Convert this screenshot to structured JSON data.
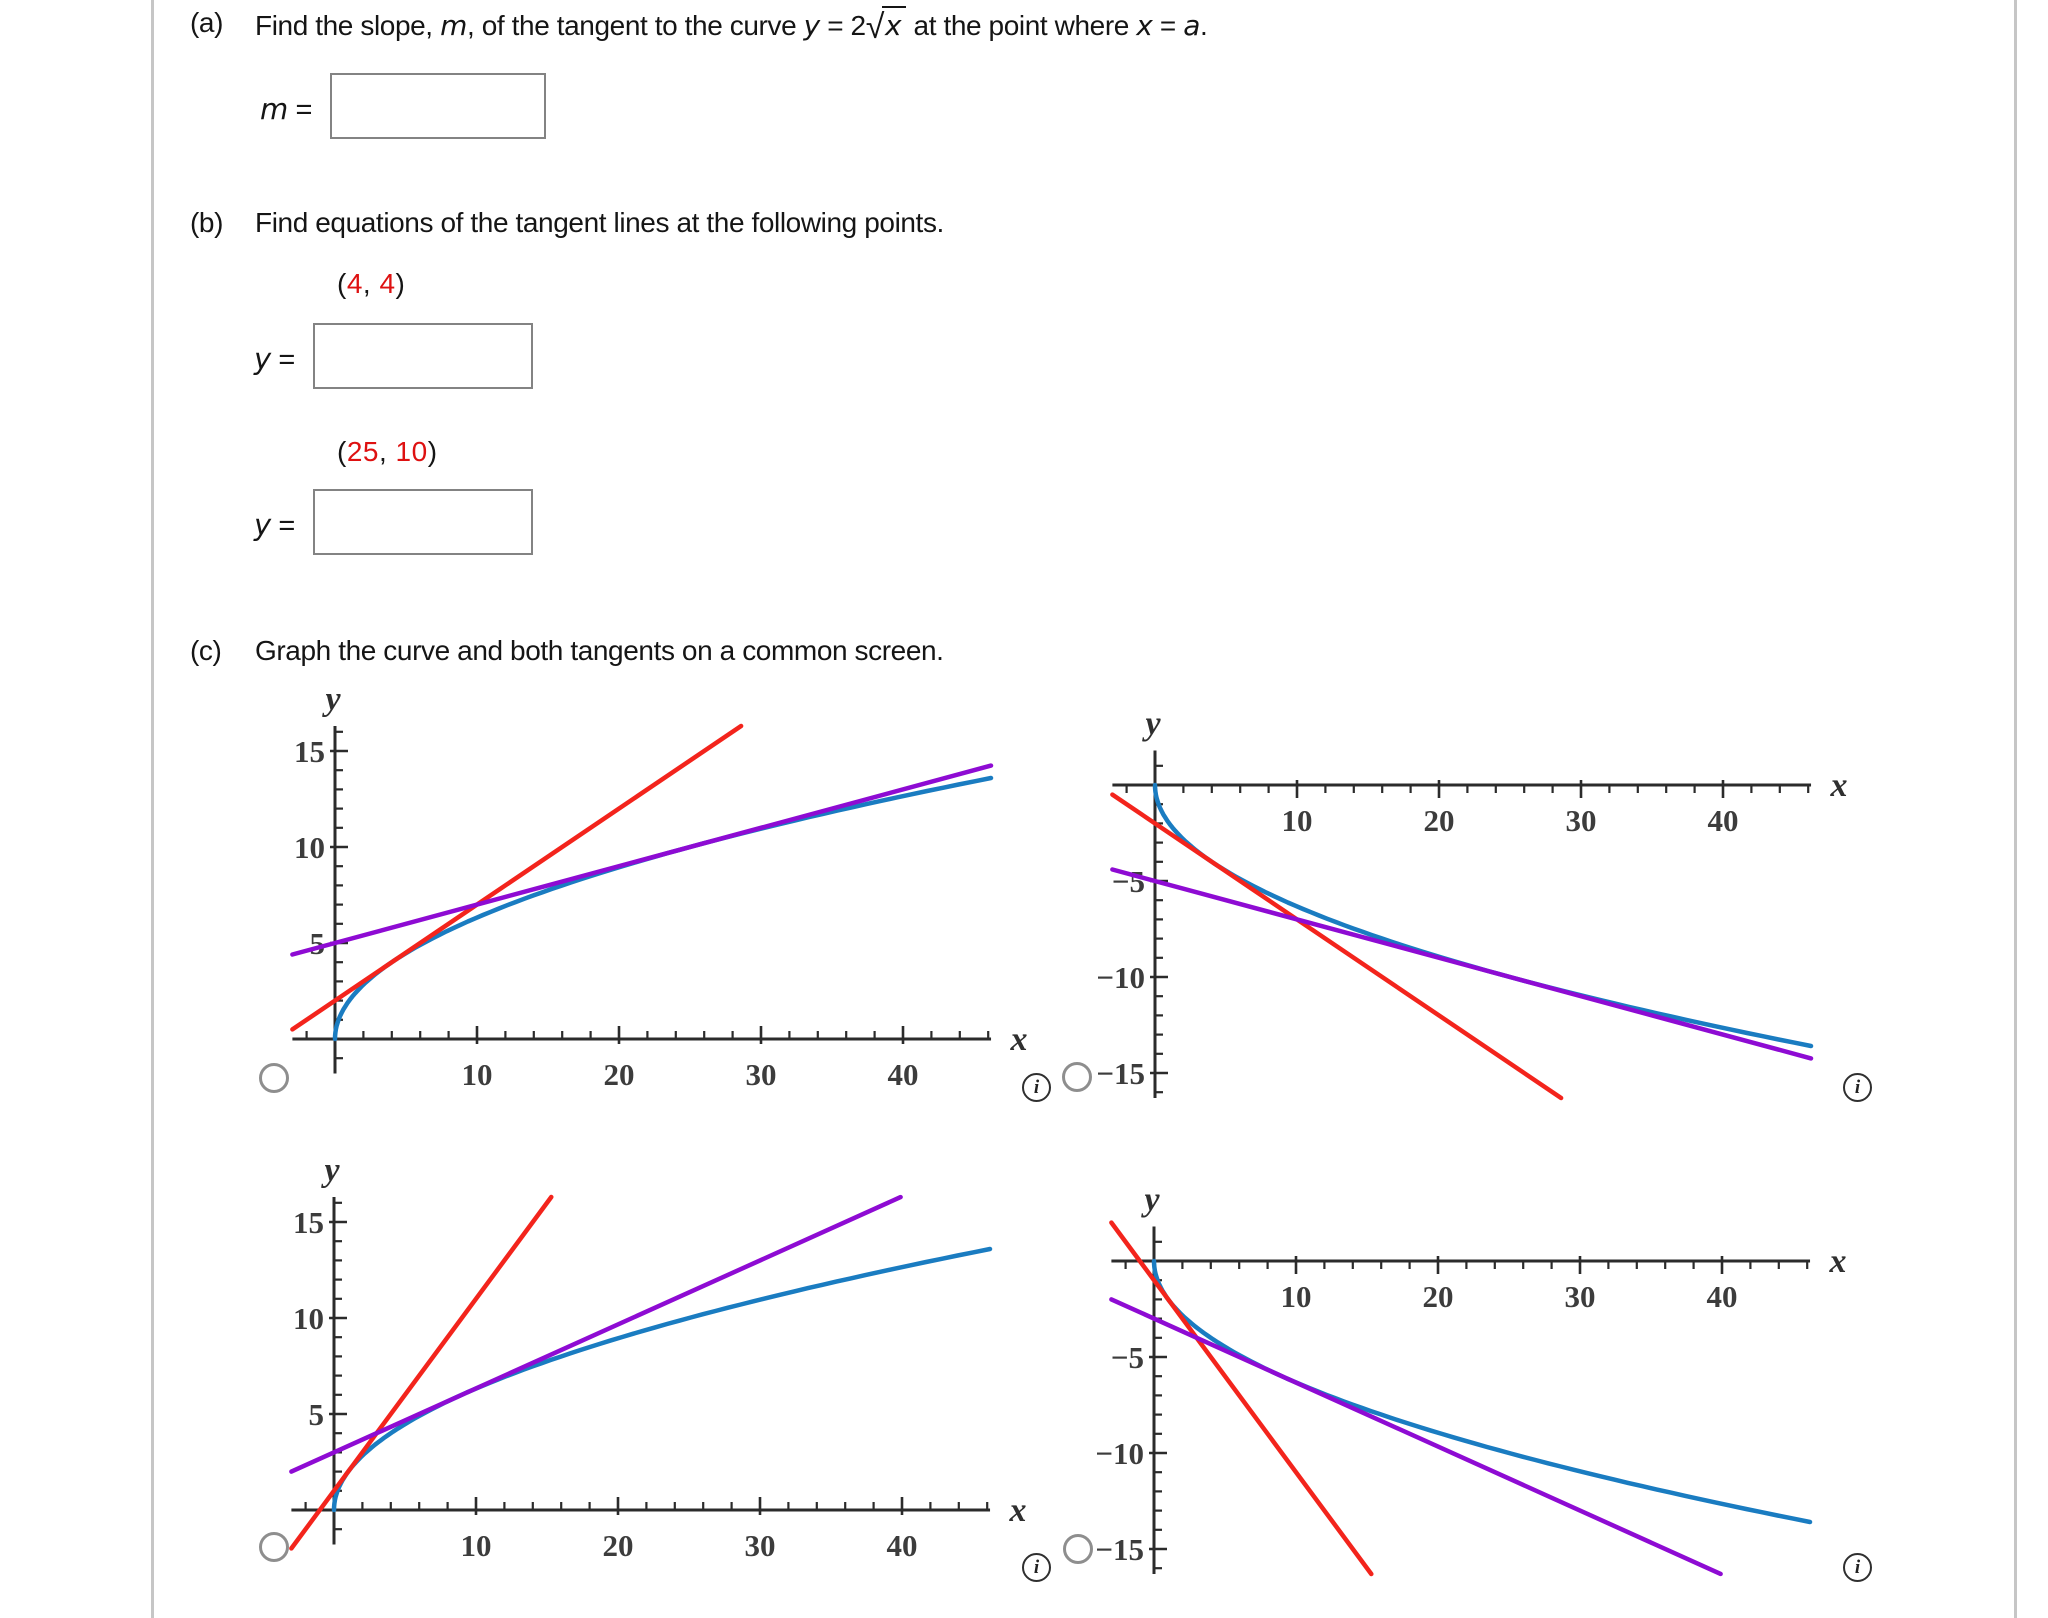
{
  "page": {
    "background": "#ffffff",
    "border_color": "#c6c6c6"
  },
  "problem": {
    "part_a": {
      "marker": "(a)",
      "text_1": "Find the slope, ",
      "var_m": "m",
      "text_2": ", of the tangent to the curve ",
      "var_y": "y",
      "text_3": " = 2",
      "sqrt_sign": "√",
      "sqrt_arg": "x",
      "text_4": " at the point where ",
      "var_x": "x",
      "text_5": " = ",
      "var_a": "a",
      "text_6": ".",
      "answer": {
        "var": "m",
        "eq": " = ",
        "value": ""
      }
    },
    "part_b": {
      "marker": "(b)",
      "text": "Find equations of the tangent lines at the following points.",
      "point_1": {
        "open": "(",
        "x": "4",
        "sep": ", ",
        "y": "4",
        "close": ")"
      },
      "point_2": {
        "open": "(",
        "x": "25",
        "sep": ", ",
        "y": "10",
        "close": ")"
      },
      "answer_1": {
        "var": "y",
        "eq": " = ",
        "value": ""
      },
      "answer_2": {
        "var": "y",
        "eq": " = ",
        "value": ""
      }
    },
    "part_c": {
      "marker": "(c)",
      "text": "Graph the curve and both tangents on a common screen."
    }
  },
  "ui": {
    "info_glyph": "i"
  },
  "options": [
    {
      "id": "a",
      "position": "top-left",
      "selected": false
    },
    {
      "id": "b",
      "position": "top-right",
      "selected": false
    },
    {
      "id": "c",
      "position": "bottom-left",
      "selected": false
    },
    {
      "id": "d",
      "position": "bottom-right",
      "selected": false
    }
  ],
  "colors": {
    "curve_blue": "#1a7cc1",
    "tangent_red": "#f3241c",
    "tangent_purple": "#8e0bd3",
    "axis": "#2b2b2b",
    "tick_label": "#3c3c3c"
  },
  "chart_data": [
    {
      "id": "option-a-top-left",
      "type": "line",
      "x_axis_label": "x",
      "y_axis_label": "y",
      "x_tick_values": [
        10,
        20,
        30,
        40
      ],
      "x_tick_labels": [
        "10",
        "20",
        "30",
        "40"
      ],
      "y_tick_values": [
        5,
        10,
        15
      ],
      "y_tick_labels": [
        "5",
        "10",
        "15"
      ],
      "x_range": [
        -3,
        46.2
      ],
      "y_range": [
        -1.8,
        16.3
      ],
      "direction": 1,
      "series": [
        {
          "name": "curve-sqrt",
          "equation": "y = 2√x",
          "type": "sqrt",
          "coef": 2,
          "sign": 1,
          "x_from": 0,
          "x_to": 46.2,
          "color": "#1a7cc1"
        },
        {
          "name": "tangent-red",
          "equation": "y = x/2 + 2",
          "type": "line",
          "slope": 0.5,
          "intercept": 2,
          "x_from": -3,
          "x_to": 28.6,
          "color": "#f3241c"
        },
        {
          "name": "tangent-purple",
          "equation": "y = x/5 + 5",
          "type": "line",
          "slope": 0.2,
          "intercept": 5,
          "x_from": -3,
          "x_to": 46.2,
          "color": "#8e0bd3"
        }
      ]
    },
    {
      "id": "option-b-top-right",
      "type": "line",
      "x_axis_label": "x",
      "y_axis_label": "y",
      "x_tick_values": [
        10,
        20,
        30,
        40
      ],
      "x_tick_labels": [
        "10",
        "20",
        "30",
        "40"
      ],
      "y_tick_values": [
        -5,
        -10,
        -15
      ],
      "y_tick_labels": [
        "−5",
        "−10",
        "−15"
      ],
      "x_range": [
        -3,
        46.2
      ],
      "y_range": [
        -16.3,
        1.8
      ],
      "direction": -1,
      "series": [
        {
          "name": "curve-sqrt",
          "equation": "y = −2√x",
          "type": "sqrt",
          "coef": 2,
          "sign": -1,
          "x_from": 0,
          "x_to": 46.2,
          "color": "#1a7cc1"
        },
        {
          "name": "tangent-red",
          "equation": "y = −x/2 − 2",
          "type": "line",
          "slope": -0.5,
          "intercept": -2,
          "x_from": -3,
          "x_to": 28.6,
          "color": "#f3241c"
        },
        {
          "name": "tangent-purple",
          "equation": "y = −x/5 − 5",
          "type": "line",
          "slope": -0.2,
          "intercept": -5,
          "x_from": -3,
          "x_to": 46.2,
          "color": "#8e0bd3"
        }
      ]
    },
    {
      "id": "option-c-bottom-left",
      "type": "line",
      "x_axis_label": "x",
      "y_axis_label": "y",
      "x_tick_values": [
        10,
        20,
        30,
        40
      ],
      "x_tick_labels": [
        "10",
        "20",
        "30",
        "40"
      ],
      "y_tick_values": [
        5,
        10,
        15
      ],
      "y_tick_labels": [
        "5",
        "10",
        "15"
      ],
      "x_range": [
        -3,
        46.2
      ],
      "y_range": [
        -2,
        16.3
      ],
      "direction": 1,
      "series": [
        {
          "name": "curve-sqrt",
          "equation": "y = 2√x",
          "type": "sqrt",
          "coef": 2,
          "sign": 1,
          "x_from": 0,
          "x_to": 46.2,
          "color": "#1a7cc1"
        },
        {
          "name": "tangent-red",
          "equation": "y = x + 1",
          "type": "line",
          "slope": 1,
          "intercept": 1,
          "x_from": -3,
          "x_to": 15.3,
          "color": "#f3241c"
        },
        {
          "name": "tangent-purple",
          "equation": "y = x/3 + 3",
          "type": "line",
          "slope": 0.3333,
          "intercept": 3,
          "x_from": -3,
          "x_to": 39.9,
          "color": "#8e0bd3"
        }
      ]
    },
    {
      "id": "option-d-bottom-right",
      "type": "line",
      "x_axis_label": "x",
      "y_axis_label": "y",
      "x_tick_values": [
        10,
        20,
        30,
        40
      ],
      "x_tick_labels": [
        "10",
        "20",
        "30",
        "40"
      ],
      "y_tick_values": [
        -5,
        -10,
        -15
      ],
      "y_tick_labels": [
        "−5",
        "−10",
        "−15"
      ],
      "x_range": [
        -3,
        46.2
      ],
      "y_range": [
        -16.3,
        2
      ],
      "direction": -1,
      "series": [
        {
          "name": "curve-sqrt",
          "equation": "y = −2√x",
          "type": "sqrt",
          "coef": 2,
          "sign": -1,
          "x_from": 0,
          "x_to": 46.2,
          "color": "#1a7cc1"
        },
        {
          "name": "tangent-red",
          "equation": "y = −x − 1",
          "type": "line",
          "slope": -1,
          "intercept": -1,
          "x_from": -3,
          "x_to": 15.3,
          "color": "#f3241c"
        },
        {
          "name": "tangent-purple",
          "equation": "y = −x/3 − 3",
          "type": "line",
          "slope": -0.3333,
          "intercept": -3,
          "x_from": -3,
          "x_to": 39.9,
          "color": "#8e0bd3"
        }
      ]
    }
  ]
}
